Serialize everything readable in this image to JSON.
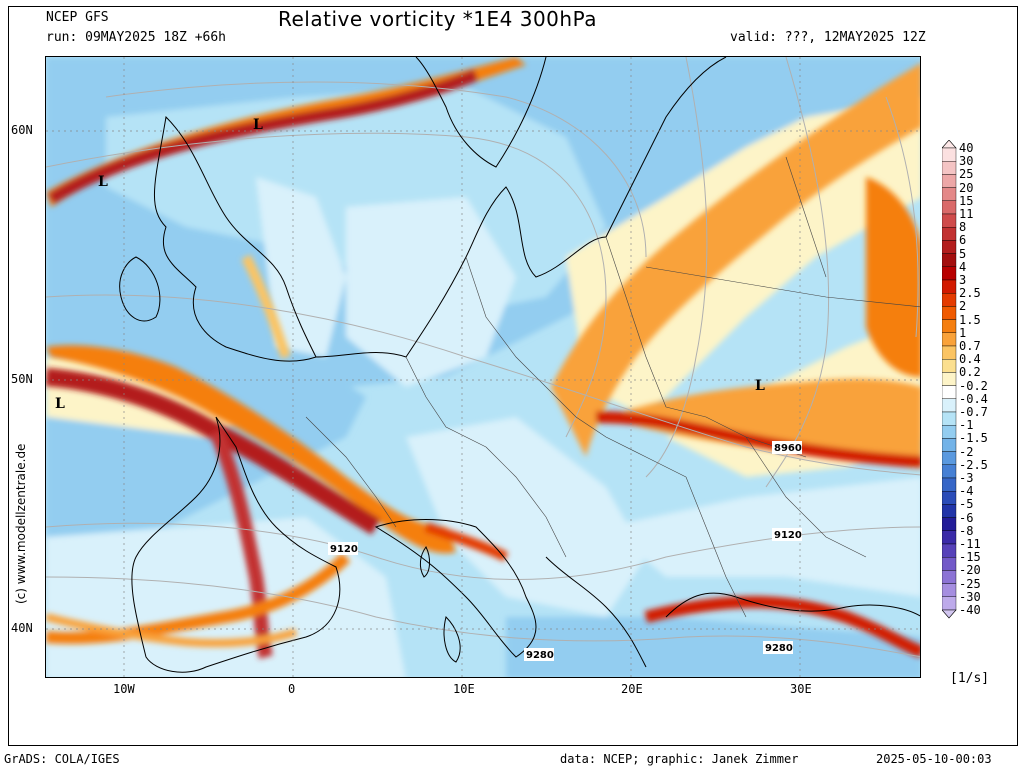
{
  "header": {
    "model": "NCEP GFS",
    "run": "run: 09MAY2025 18Z +66h",
    "title": "Relative vorticity *1E4 300hPa",
    "valid": "valid: ???, 12MAY2025 12Z"
  },
  "axes": {
    "y_ticks": [
      "60N",
      "50N",
      "40N"
    ],
    "x_ticks": [
      "10W",
      "0",
      "10E",
      "20E",
      "30E"
    ]
  },
  "credit": "(c) www.modellzentrale.de",
  "map": {
    "lows": [
      "L",
      "L",
      "L",
      "L"
    ],
    "height_labels": [
      "8960",
      "9120",
      "9120",
      "9280",
      "9280"
    ]
  },
  "colorbar": {
    "labels": [
      "40",
      "30",
      "25",
      "20",
      "15",
      "11",
      "8",
      "6",
      "5",
      "4",
      "3",
      "2.5",
      "2",
      "1.5",
      "1",
      "0.7",
      "0.4",
      "0.2",
      "-0.2",
      "-0.4",
      "-0.7",
      "-1",
      "-1.5",
      "-2",
      "-2.5",
      "-3",
      "-4",
      "-5",
      "-6",
      "-8",
      "-11",
      "-15",
      "-20",
      "-25",
      "-30",
      "-40"
    ],
    "colors": [
      "#fbe0e0",
      "#f4c4c4",
      "#eda7a7",
      "#e48888",
      "#da6a6a",
      "#cf4b4b",
      "#c23131",
      "#b31d1d",
      "#a30e0e",
      "#b80000",
      "#d21a00",
      "#e43b00",
      "#f05a00",
      "#f57f10",
      "#f9a23a",
      "#fbc463",
      "#fbdf8f",
      "#fdf4c8",
      "#ffffff",
      "#d9f1fb",
      "#b5e3f6",
      "#93cdf0",
      "#73b3e8",
      "#5a99df",
      "#4680d4",
      "#3666c7",
      "#2a4cb8",
      "#2134a8",
      "#221c98",
      "#3a2aa8",
      "#5641b9",
      "#7259c8",
      "#8c73d5",
      "#a58ee0",
      "#bdaaea"
    ],
    "unit": "[1/s]"
  },
  "footer": {
    "software": "GrADS: COLA/IGES",
    "data": "data: NCEP; graphic: Janek Zimmer",
    "timestamp": "2025-05-10-00:03"
  }
}
